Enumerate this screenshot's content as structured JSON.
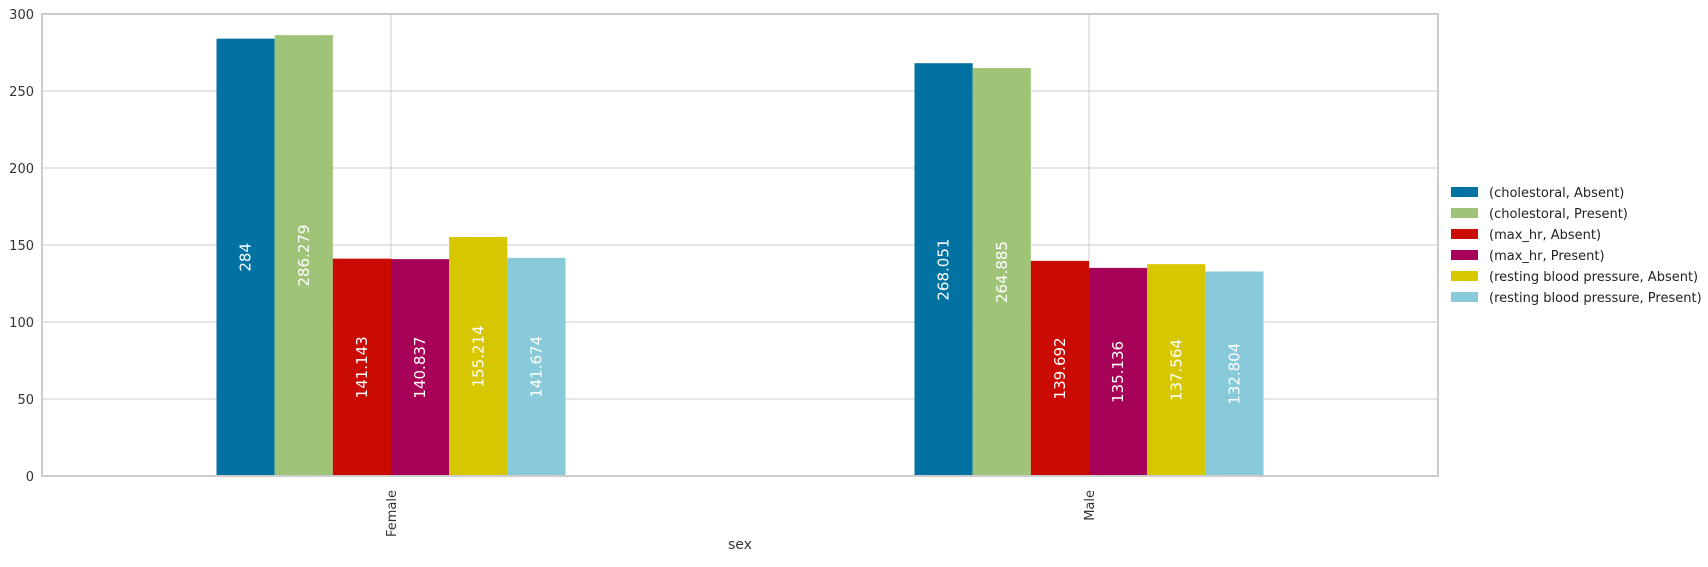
{
  "chart_data": {
    "type": "bar",
    "title": "",
    "xlabel": "sex",
    "ylabel": "",
    "categories": [
      "Female",
      "Male"
    ],
    "ylim": [
      0,
      300
    ],
    "yticks": [
      0,
      50,
      100,
      150,
      200,
      250,
      300
    ],
    "grid": true,
    "legend_position": "right",
    "series": [
      {
        "name": "(cholestoral, Absent)",
        "color": "#0272a2",
        "values": [
          284,
          268.051
        ],
        "labels": [
          "284",
          "268.051"
        ]
      },
      {
        "name": "(cholestoral, Present)",
        "color": "#9fc377",
        "values": [
          286.279,
          264.885
        ],
        "labels": [
          "286.279",
          "264.885"
        ]
      },
      {
        "name": "(max_hr, Absent)",
        "color": "#ca0b03",
        "values": [
          141.143,
          139.692
        ],
        "labels": [
          "141.143",
          "139.692"
        ]
      },
      {
        "name": "(max_hr, Present)",
        "color": "#a50258",
        "values": [
          140.837,
          135.136
        ],
        "labels": [
          "140.837",
          "135.136"
        ]
      },
      {
        "name": "(resting blood pressure, Absent)",
        "color": "#d7c703",
        "values": [
          155.214,
          137.564
        ],
        "labels": [
          "155.214",
          "137.564"
        ]
      },
      {
        "name": "(resting blood pressure, Present)",
        "color": "#88cada",
        "values": [
          141.674,
          132.804
        ],
        "labels": [
          "141.674",
          "132.804"
        ]
      }
    ]
  }
}
